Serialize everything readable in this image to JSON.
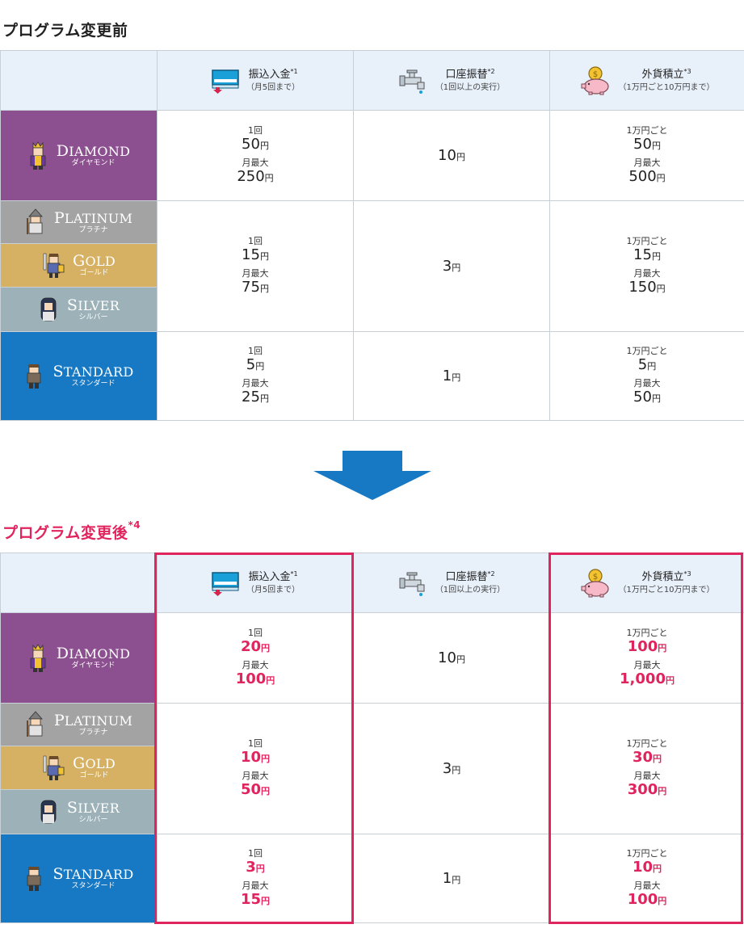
{
  "before": {
    "title": "プログラム変更前"
  },
  "after": {
    "title": "プログラム変更後",
    "title_sup": "*4"
  },
  "headers": [
    {
      "name": "振込入金",
      "sup": "*1",
      "sub": "（月5回まで）",
      "icon": "transfer-card-icon"
    },
    {
      "name": "口座振替",
      "sup": "*2",
      "sub": "（1回以上の実行）",
      "icon": "faucet-icon"
    },
    {
      "name": "外貨積立",
      "sup": "*3",
      "sub": "（1万円ごと10万円まで）",
      "icon": "piggy-bank-icon"
    }
  ],
  "tiers": {
    "diamond": {
      "cap": "D",
      "rest": "IAMOND",
      "kana": "ダイヤモンド"
    },
    "platinum": {
      "cap": "P",
      "rest": "LATINUM",
      "kana": "プラチナ"
    },
    "gold": {
      "cap": "G",
      "rest": "OLD",
      "kana": "ゴールド"
    },
    "silver": {
      "cap": "S",
      "rest": "ILVER",
      "kana": "シルバー"
    },
    "standard": {
      "cap": "S",
      "rest": "TANDARD",
      "kana": "スタンダード"
    }
  },
  "labels": {
    "per_time": "1回",
    "monthly_max": "月最大",
    "per_10k": "1万円ごと",
    "yen": "円"
  },
  "before_values": {
    "diamond": {
      "transfer_once": "50",
      "transfer_max": "250",
      "debit": "10",
      "fx_per": "50",
      "fx_max": "500"
    },
    "mid": {
      "transfer_once": "15",
      "transfer_max": "75",
      "debit": "3",
      "fx_per": "15",
      "fx_max": "150"
    },
    "standard": {
      "transfer_once": "5",
      "transfer_max": "25",
      "debit": "1",
      "fx_per": "5",
      "fx_max": "50"
    }
  },
  "after_values": {
    "diamond": {
      "transfer_once": "20",
      "transfer_max": "100",
      "debit": "10",
      "fx_per": "100",
      "fx_max": "1,000"
    },
    "mid": {
      "transfer_once": "10",
      "transfer_max": "50",
      "debit": "3",
      "fx_per": "30",
      "fx_max": "300"
    },
    "standard": {
      "transfer_once": "3",
      "transfer_max": "15",
      "debit": "1",
      "fx_per": "10",
      "fx_max": "100"
    }
  },
  "colors": {
    "accent_pink": "#e0245e",
    "arrow_blue": "#1778c4",
    "header_bg": "#e8f0fa"
  }
}
